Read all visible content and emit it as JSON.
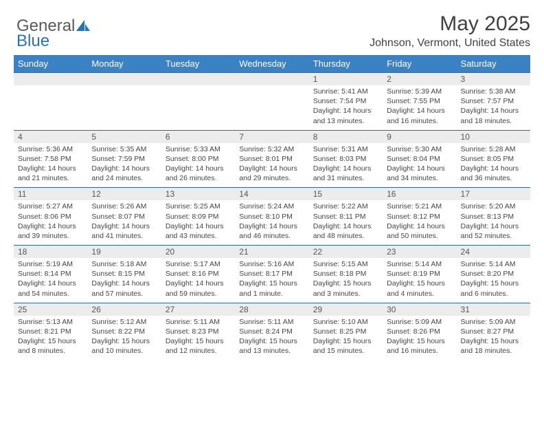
{
  "brand": {
    "part1": "General",
    "part2": "Blue"
  },
  "title": "May 2025",
  "location": "Johnson, Vermont, United States",
  "colors": {
    "header_bg": "#3b82c4",
    "header_text": "#ffffff",
    "numrow_bg": "#ececec",
    "numrow_border": "#2d6aa3",
    "body_text": "#444444",
    "brand_gray": "#5a5a5a",
    "brand_blue": "#2a72b5"
  },
  "weekdays": [
    "Sunday",
    "Monday",
    "Tuesday",
    "Wednesday",
    "Thursday",
    "Friday",
    "Saturday"
  ],
  "weeks": [
    [
      null,
      null,
      null,
      null,
      {
        "n": "1",
        "sunrise": "5:41 AM",
        "sunset": "7:54 PM",
        "daylight1": "Daylight: 14 hours",
        "daylight2": "and 13 minutes."
      },
      {
        "n": "2",
        "sunrise": "5:39 AM",
        "sunset": "7:55 PM",
        "daylight1": "Daylight: 14 hours",
        "daylight2": "and 16 minutes."
      },
      {
        "n": "3",
        "sunrise": "5:38 AM",
        "sunset": "7:57 PM",
        "daylight1": "Daylight: 14 hours",
        "daylight2": "and 18 minutes."
      }
    ],
    [
      {
        "n": "4",
        "sunrise": "5:36 AM",
        "sunset": "7:58 PM",
        "daylight1": "Daylight: 14 hours",
        "daylight2": "and 21 minutes."
      },
      {
        "n": "5",
        "sunrise": "5:35 AM",
        "sunset": "7:59 PM",
        "daylight1": "Daylight: 14 hours",
        "daylight2": "and 24 minutes."
      },
      {
        "n": "6",
        "sunrise": "5:33 AM",
        "sunset": "8:00 PM",
        "daylight1": "Daylight: 14 hours",
        "daylight2": "and 26 minutes."
      },
      {
        "n": "7",
        "sunrise": "5:32 AM",
        "sunset": "8:01 PM",
        "daylight1": "Daylight: 14 hours",
        "daylight2": "and 29 minutes."
      },
      {
        "n": "8",
        "sunrise": "5:31 AM",
        "sunset": "8:03 PM",
        "daylight1": "Daylight: 14 hours",
        "daylight2": "and 31 minutes."
      },
      {
        "n": "9",
        "sunrise": "5:30 AM",
        "sunset": "8:04 PM",
        "daylight1": "Daylight: 14 hours",
        "daylight2": "and 34 minutes."
      },
      {
        "n": "10",
        "sunrise": "5:28 AM",
        "sunset": "8:05 PM",
        "daylight1": "Daylight: 14 hours",
        "daylight2": "and 36 minutes."
      }
    ],
    [
      {
        "n": "11",
        "sunrise": "5:27 AM",
        "sunset": "8:06 PM",
        "daylight1": "Daylight: 14 hours",
        "daylight2": "and 39 minutes."
      },
      {
        "n": "12",
        "sunrise": "5:26 AM",
        "sunset": "8:07 PM",
        "daylight1": "Daylight: 14 hours",
        "daylight2": "and 41 minutes."
      },
      {
        "n": "13",
        "sunrise": "5:25 AM",
        "sunset": "8:09 PM",
        "daylight1": "Daylight: 14 hours",
        "daylight2": "and 43 minutes."
      },
      {
        "n": "14",
        "sunrise": "5:24 AM",
        "sunset": "8:10 PM",
        "daylight1": "Daylight: 14 hours",
        "daylight2": "and 46 minutes."
      },
      {
        "n": "15",
        "sunrise": "5:22 AM",
        "sunset": "8:11 PM",
        "daylight1": "Daylight: 14 hours",
        "daylight2": "and 48 minutes."
      },
      {
        "n": "16",
        "sunrise": "5:21 AM",
        "sunset": "8:12 PM",
        "daylight1": "Daylight: 14 hours",
        "daylight2": "and 50 minutes."
      },
      {
        "n": "17",
        "sunrise": "5:20 AM",
        "sunset": "8:13 PM",
        "daylight1": "Daylight: 14 hours",
        "daylight2": "and 52 minutes."
      }
    ],
    [
      {
        "n": "18",
        "sunrise": "5:19 AM",
        "sunset": "8:14 PM",
        "daylight1": "Daylight: 14 hours",
        "daylight2": "and 54 minutes."
      },
      {
        "n": "19",
        "sunrise": "5:18 AM",
        "sunset": "8:15 PM",
        "daylight1": "Daylight: 14 hours",
        "daylight2": "and 57 minutes."
      },
      {
        "n": "20",
        "sunrise": "5:17 AM",
        "sunset": "8:16 PM",
        "daylight1": "Daylight: 14 hours",
        "daylight2": "and 59 minutes."
      },
      {
        "n": "21",
        "sunrise": "5:16 AM",
        "sunset": "8:17 PM",
        "daylight1": "Daylight: 15 hours",
        "daylight2": "and 1 minute."
      },
      {
        "n": "22",
        "sunrise": "5:15 AM",
        "sunset": "8:18 PM",
        "daylight1": "Daylight: 15 hours",
        "daylight2": "and 3 minutes."
      },
      {
        "n": "23",
        "sunrise": "5:14 AM",
        "sunset": "8:19 PM",
        "daylight1": "Daylight: 15 hours",
        "daylight2": "and 4 minutes."
      },
      {
        "n": "24",
        "sunrise": "5:14 AM",
        "sunset": "8:20 PM",
        "daylight1": "Daylight: 15 hours",
        "daylight2": "and 6 minutes."
      }
    ],
    [
      {
        "n": "25",
        "sunrise": "5:13 AM",
        "sunset": "8:21 PM",
        "daylight1": "Daylight: 15 hours",
        "daylight2": "and 8 minutes."
      },
      {
        "n": "26",
        "sunrise": "5:12 AM",
        "sunset": "8:22 PM",
        "daylight1": "Daylight: 15 hours",
        "daylight2": "and 10 minutes."
      },
      {
        "n": "27",
        "sunrise": "5:11 AM",
        "sunset": "8:23 PM",
        "daylight1": "Daylight: 15 hours",
        "daylight2": "and 12 minutes."
      },
      {
        "n": "28",
        "sunrise": "5:11 AM",
        "sunset": "8:24 PM",
        "daylight1": "Daylight: 15 hours",
        "daylight2": "and 13 minutes."
      },
      {
        "n": "29",
        "sunrise": "5:10 AM",
        "sunset": "8:25 PM",
        "daylight1": "Daylight: 15 hours",
        "daylight2": "and 15 minutes."
      },
      {
        "n": "30",
        "sunrise": "5:09 AM",
        "sunset": "8:26 PM",
        "daylight1": "Daylight: 15 hours",
        "daylight2": "and 16 minutes."
      },
      {
        "n": "31",
        "sunrise": "5:09 AM",
        "sunset": "8:27 PM",
        "daylight1": "Daylight: 15 hours",
        "daylight2": "and 18 minutes."
      }
    ]
  ],
  "labels": {
    "sunrise_prefix": "Sunrise: ",
    "sunset_prefix": "Sunset: "
  }
}
